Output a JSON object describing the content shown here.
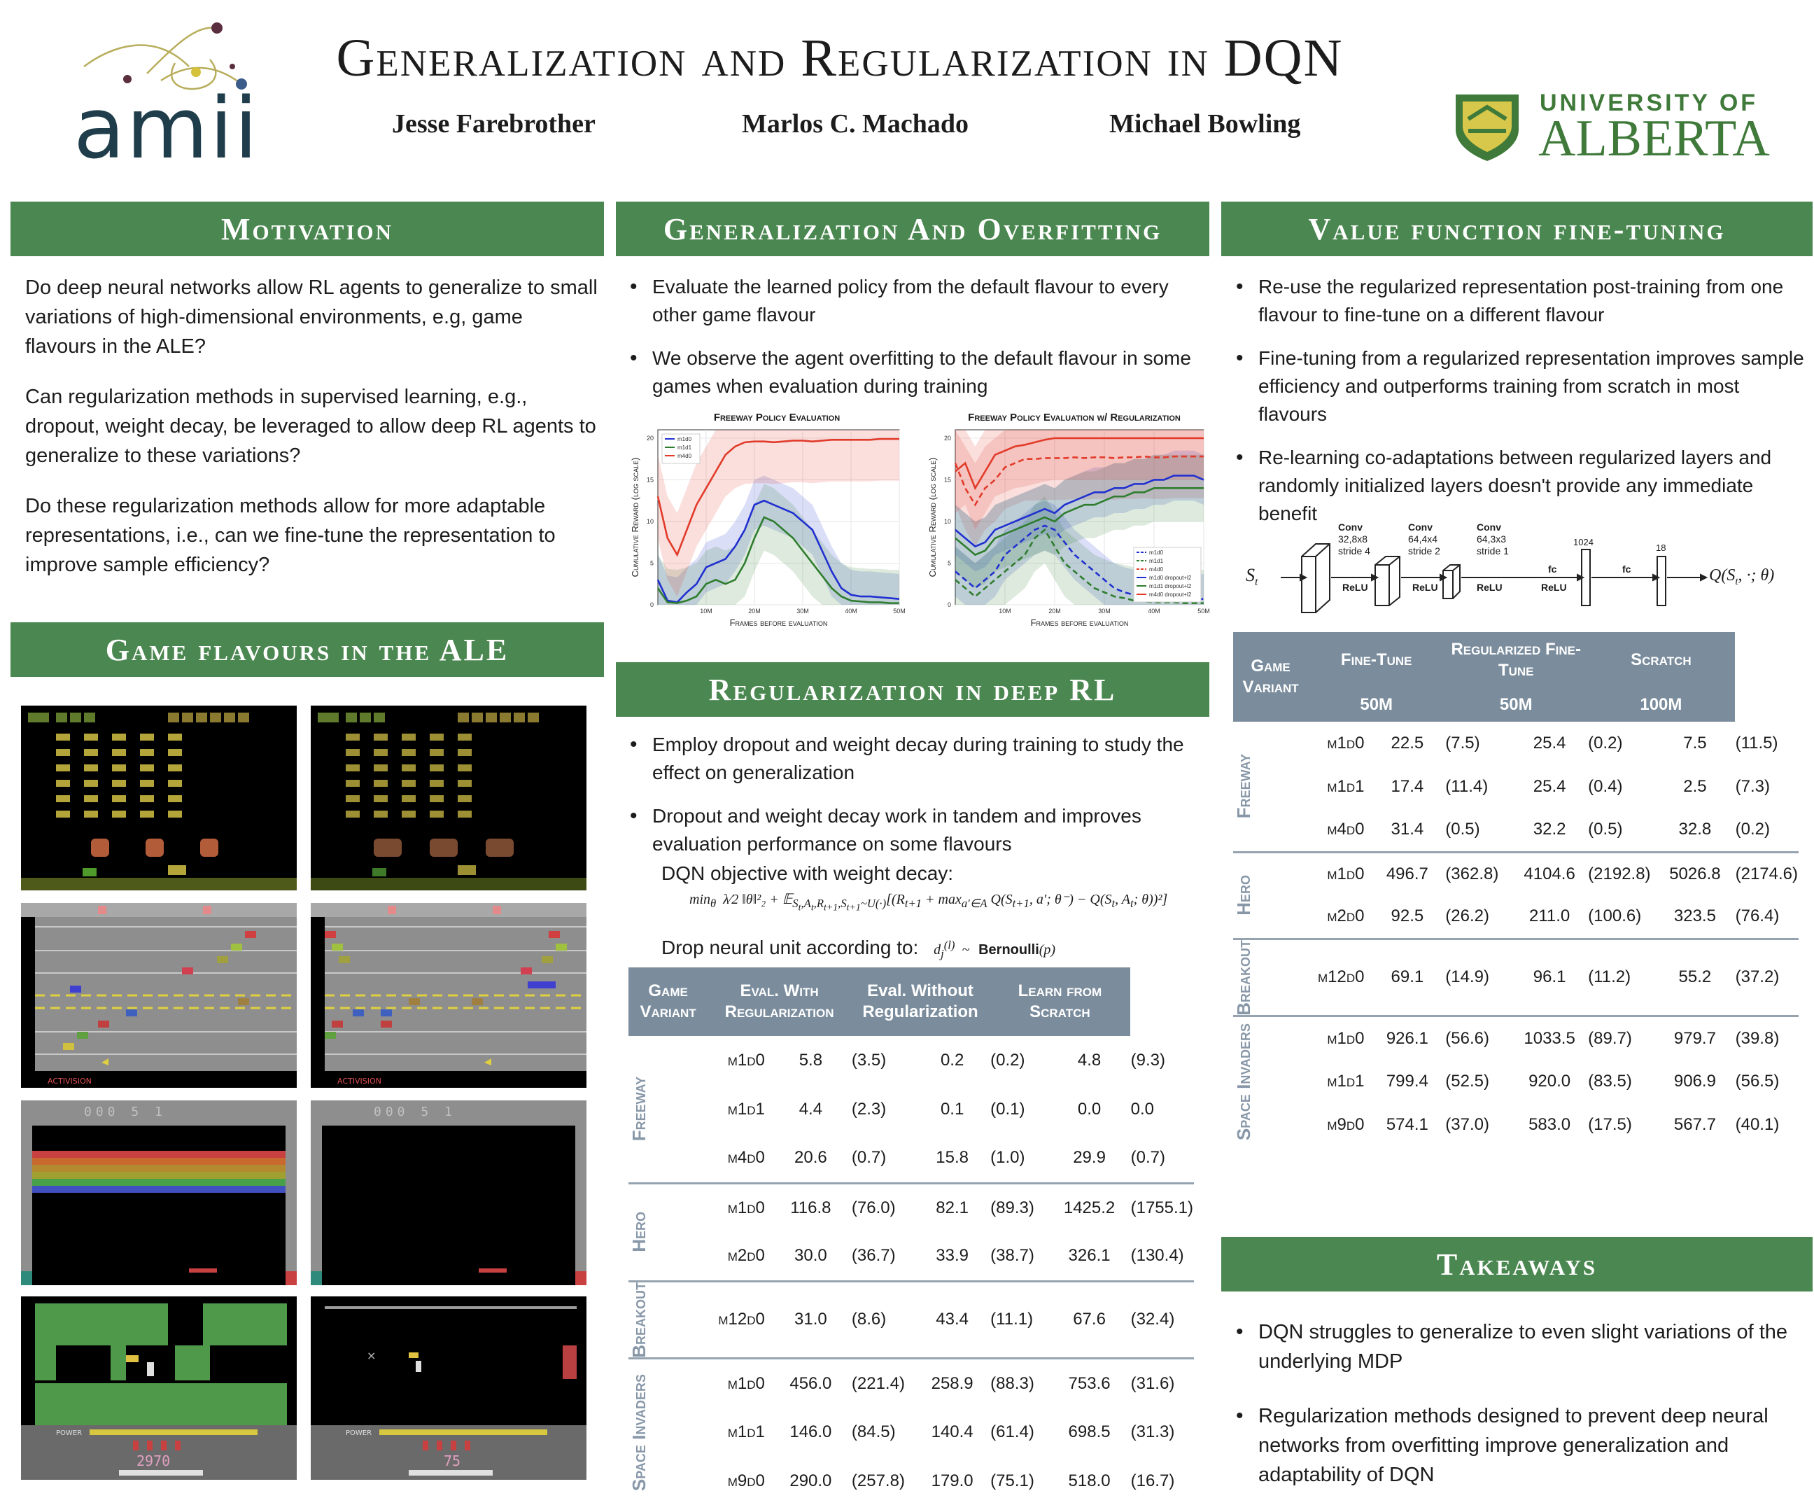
{
  "header": {
    "title": "Generalization and Regularization in DQN",
    "authors": [
      "Jesse Farebrother",
      "Marlos C. Machado",
      "Michael Bowling"
    ],
    "amii_logo_text": "amii",
    "ua_logo_line1": "UNIVERSITY OF",
    "ua_logo_line2": "ALBERTA"
  },
  "motivation": {
    "heading": "Motivation",
    "paragraphs": [
      "Do deep neural networks allow RL agents to generalize to small variations of high-dimensional environments, e.g, game flavours in the ALE?",
      "Can regularization methods in supervised learning, e.g., dropout, weight decay, be leveraged to allow deep RL agents to generalize to these variations?",
      "Do these regularization methods allow for more adaptable representations, i.e., can we fine-tune the representation to improve sample efficiency?"
    ]
  },
  "game_flavours": {
    "heading": "Game flavours in the ALE",
    "freeway_brand": "ACTIVISION",
    "breakout_score": "000  5  1",
    "hero_power": "POWER",
    "hero_scores": [
      "2970",
      "75"
    ]
  },
  "generalization": {
    "heading": "Generalization And Overfitting",
    "bullets": [
      "Evaluate the learned policy from the default flavour to every other game flavour",
      "We observe the agent overfitting to the default flavour in some games when evaluation during training"
    ]
  },
  "regularization": {
    "heading": "Regularization in deep RL",
    "bullets": [
      "Employ dropout and weight decay during training to study the effect  on generalization",
      "Dropout and weight decay work in tandem and improves evaluation performance on some flavours"
    ],
    "objective_label": "DQN objective with weight decay:",
    "dropout_label": "Drop neural unit according to:",
    "bernoulli": "Bernoulli"
  },
  "finetune": {
    "heading": "Value function fine-tuning",
    "bullets": [
      "Re-use the regularized representation post-training from one flavour to fine-tune on a different flavour",
      "Fine-tuning from a regularized representation improves sample efficiency and outperforms training from scratch in most flavours",
      "Re-learning co-adaptations between regularized layers and randomly initialized layers doesn't provide any immediate benefit"
    ],
    "network": {
      "conv1": [
        "Conv",
        "32,8x8",
        "stride 4"
      ],
      "conv2": [
        "Conv",
        "64,4x4",
        "stride 2"
      ],
      "conv3": [
        "Conv",
        "64,3x3",
        "stride 1"
      ],
      "relu": "ReLU",
      "fc": "fc",
      "dim1": "1024",
      "dim2": "18"
    }
  },
  "takeaways": {
    "heading": "Takeaways",
    "bullets": [
      "DQN struggles to generalize to even slight variations of the underlying MDP",
      "Regularization methods designed to prevent deep neural networks from overfitting improve generalization and adaptability of DQN"
    ]
  },
  "reg_table": {
    "headers": [
      "Game Variant",
      "Eval. With Regularization",
      "Eval. Without Regularization",
      "Learn from Scratch"
    ],
    "groups": [
      {
        "game": "Freeway",
        "rows": [
          [
            "m1d0",
            "5.8",
            "(3.5)",
            "0.2",
            "(0.2)",
            "4.8",
            "(9.3)"
          ],
          [
            "m1d1",
            "4.4",
            "(2.3)",
            "0.1",
            "(0.1)",
            "0.0",
            "0.0"
          ],
          [
            "m4d0",
            "20.6",
            "(0.7)",
            "15.8",
            "(1.0)",
            "29.9",
            "(0.7)"
          ]
        ]
      },
      {
        "game": "Hero",
        "rows": [
          [
            "m1d0",
            "116.8",
            "(76.0)",
            "82.1",
            "(89.3)",
            "1425.2",
            "(1755.1)"
          ],
          [
            "m2d0",
            "30.0",
            "(36.7)",
            "33.9",
            "(38.7)",
            "326.1",
            "(130.4)"
          ]
        ]
      },
      {
        "game": "Breakout",
        "rows": [
          [
            "m12d0",
            "31.0",
            "(8.6)",
            "43.4",
            "(11.1)",
            "67.6",
            "(32.4)"
          ]
        ]
      },
      {
        "game": "Space Invaders",
        "rows": [
          [
            "m1d0",
            "456.0",
            "(221.4)",
            "258.9",
            "(88.3)",
            "753.6",
            "(31.6)"
          ],
          [
            "m1d1",
            "146.0",
            "(84.5)",
            "140.4",
            "(61.4)",
            "698.5",
            "(31.3)"
          ],
          [
            "m9d0",
            "290.0",
            "(257.8)",
            "179.0",
            "(75.1)",
            "518.0",
            "(16.7)"
          ]
        ]
      }
    ]
  },
  "ft_table": {
    "headers": [
      "Game Variant",
      "Fine-Tune",
      "Regularized Fine-Tune",
      "Scratch"
    ],
    "subheaders": [
      "50M",
      "50M",
      "100M"
    ],
    "groups": [
      {
        "game": "Freeway",
        "rows": [
          [
            "m1d0",
            "22.5",
            "(7.5)",
            "25.4",
            "(0.2)",
            "7.5",
            "(11.5)"
          ],
          [
            "m1d1",
            "17.4",
            "(11.4)",
            "25.4",
            "(0.4)",
            "2.5",
            "(7.3)"
          ],
          [
            "m4d0",
            "31.4",
            "(0.5)",
            "32.2",
            "(0.5)",
            "32.8",
            "(0.2)"
          ]
        ]
      },
      {
        "game": "Hero",
        "rows": [
          [
            "m1d0",
            "496.7",
            "(362.8)",
            "4104.6",
            "(2192.8)",
            "5026.8",
            "(2174.6)"
          ],
          [
            "m2d0",
            "92.5",
            "(26.2)",
            "211.0",
            "(100.6)",
            "323.5",
            "(76.4)"
          ]
        ]
      },
      {
        "game": "Breakout",
        "rows": [
          [
            "m12d0",
            "69.1",
            "(14.9)",
            "96.1",
            "(11.2)",
            "55.2",
            "(37.2)"
          ]
        ]
      },
      {
        "game": "Space Invaders",
        "rows": [
          [
            "m1d0",
            "926.1",
            "(56.6)",
            "1033.5",
            "(89.7)",
            "979.7",
            "(39.8)"
          ],
          [
            "m1d1",
            "799.4",
            "(52.5)",
            "920.0",
            "(83.5)",
            "906.9",
            "(56.5)"
          ],
          [
            "m9d0",
            "574.1",
            "(37.0)",
            "583.0",
            "(17.5)",
            "567.7",
            "(40.1)"
          ]
        ]
      }
    ]
  },
  "chart_data": [
    {
      "type": "line",
      "title": "Freeway Policy Evaluation",
      "xlabel": "Frames before evaluation",
      "ylabel": "Cumulative Reward (log scale)",
      "x_ticks": [
        "10M",
        "20M",
        "30M",
        "40M",
        "50M"
      ],
      "y_ticks": [
        "0",
        "5",
        "10",
        "15",
        "20"
      ],
      "xlim": [
        0,
        50
      ],
      "ylim": [
        0,
        21
      ],
      "legend_position": "top-left",
      "x": [
        0,
        2,
        4,
        6,
        8,
        10,
        12,
        14,
        16,
        18,
        20,
        22,
        24,
        26,
        28,
        30,
        32,
        34,
        36,
        38,
        40,
        42,
        44,
        46,
        48,
        50
      ],
      "series": [
        {
          "name": "m1d0",
          "color": "#2030d0",
          "values": [
            3,
            0.5,
            0.3,
            1.5,
            2.5,
            4.5,
            5,
            5.5,
            7,
            9,
            12,
            12.5,
            12,
            11.5,
            11,
            10,
            9,
            6.5,
            4,
            2,
            1.2,
            1,
            1,
            0.9,
            0.8,
            0.7
          ]
        },
        {
          "name": "m1d1",
          "color": "#2e7d2e",
          "values": [
            2,
            0.3,
            0.2,
            0.5,
            1,
            2.5,
            3,
            2.5,
            3,
            5,
            8,
            10.5,
            10,
            9,
            8,
            6.5,
            5,
            3.5,
            2,
            1,
            0.5,
            0.4,
            0.3,
            0.3,
            0.2,
            0.2
          ]
        },
        {
          "name": "m4d0",
          "color": "#e23b2a",
          "values": [
            13,
            8,
            6,
            9,
            12,
            14,
            16,
            18,
            19,
            19.5,
            19.6,
            19.6,
            19.5,
            19.6,
            19.7,
            19.7,
            19.6,
            19.7,
            19.8,
            19.8,
            19.8,
            19.8,
            19.8,
            19.9,
            19.9,
            19.9
          ]
        }
      ]
    },
    {
      "type": "line",
      "title": "Freeway Policy Evaluation w/ Regularization",
      "xlabel": "Frames before evaluation",
      "ylabel": "Cumulative Reward (log scale)",
      "x_ticks": [
        "10M",
        "20M",
        "30M",
        "40M",
        "50M"
      ],
      "y_ticks": [
        "0",
        "5",
        "10",
        "15",
        "20"
      ],
      "xlim": [
        0,
        50
      ],
      "ylim": [
        0,
        21
      ],
      "legend_position": "bottom-right",
      "x": [
        0,
        2,
        4,
        6,
        8,
        10,
        12,
        14,
        16,
        18,
        20,
        22,
        24,
        26,
        28,
        30,
        32,
        34,
        36,
        38,
        40,
        42,
        44,
        46,
        48,
        50
      ],
      "series": [
        {
          "name": "m1d0",
          "color": "#2030d0",
          "dashed": true,
          "values": [
            4,
            3,
            2,
            3,
            4,
            6,
            7,
            8,
            9,
            9.5,
            9,
            7.5,
            6,
            5,
            4,
            3,
            2,
            1.5,
            1.2,
            1,
            1,
            0.9,
            0.8,
            0.8,
            0.7,
            0.7
          ]
        },
        {
          "name": "m1d1",
          "color": "#2e7d2e",
          "dashed": true,
          "values": [
            3,
            2,
            1,
            2,
            3,
            4,
            5,
            6,
            8,
            9,
            7,
            5,
            4,
            3,
            2,
            1.5,
            1,
            0.8,
            0.5,
            0.4,
            0.3,
            0.3,
            0.3,
            0.2,
            0.2,
            0.2
          ]
        },
        {
          "name": "m4d0",
          "color": "#e23b2a",
          "dashed": true,
          "values": [
            17,
            14,
            12,
            14,
            15,
            16.5,
            17,
            17.5,
            17.5,
            17.6,
            17.6,
            17.6,
            17.7,
            17.6,
            17.7,
            17.7,
            17.6,
            17.7,
            17.7,
            17.8,
            17.7,
            17.7,
            17.8,
            17.8,
            17.8,
            17.8
          ]
        },
        {
          "name": "m1d0 dropout+l2",
          "color": "#2030d0",
          "values": [
            9,
            8,
            7,
            7.5,
            9,
            9.5,
            10,
            10.5,
            11,
            11.5,
            11,
            12,
            12.5,
            13,
            13.5,
            13.5,
            14,
            14,
            14.5,
            14.5,
            15,
            15,
            15.5,
            15.5,
            15.5,
            15
          ]
        },
        {
          "name": "m1d1 dropout+l2",
          "color": "#2e7d2e",
          "values": [
            8,
            7,
            6,
            6.5,
            8,
            8.5,
            9,
            9.5,
            10,
            10.5,
            10,
            11,
            11.5,
            12,
            12,
            12.5,
            13,
            13,
            13.5,
            13.5,
            14,
            14,
            14,
            14,
            14,
            14
          ]
        },
        {
          "name": "m4d0 dropout+l2",
          "color": "#e23b2a",
          "values": [
            16,
            17,
            14,
            16,
            18,
            18.5,
            19,
            19.2,
            19.5,
            19.8,
            20,
            20,
            20,
            20,
            20,
            20,
            20,
            20,
            20,
            20,
            20,
            20,
            20,
            20,
            20,
            20
          ]
        }
      ]
    }
  ]
}
